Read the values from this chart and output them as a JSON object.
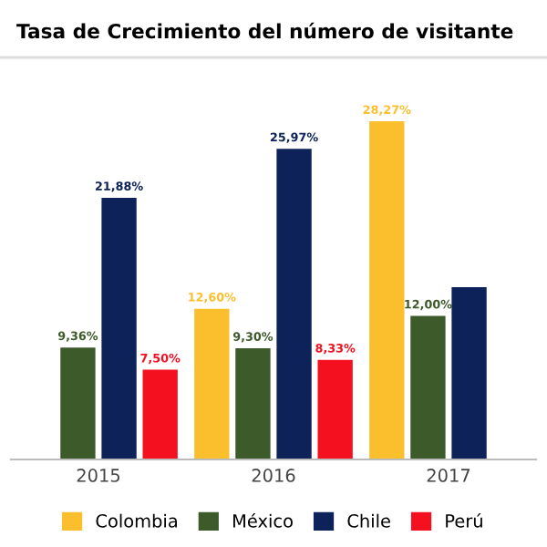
{
  "chart_data": {
    "type": "bar",
    "title": "Tasa de Crecimiento del número de visitante",
    "categories": [
      "2015",
      "2016",
      "2017"
    ],
    "series": [
      {
        "name": "Colombia",
        "color": "#fbbf2e",
        "values": [
          null,
          12.6,
          28.27
        ],
        "value_labels": [
          null,
          "12,60%",
          "28,27%"
        ]
      },
      {
        "name": "México",
        "color": "#3d5a2a",
        "values": [
          9.36,
          9.3,
          12.0
        ],
        "value_labels": [
          "9,36%",
          "9,30%",
          "12,00%"
        ]
      },
      {
        "name": "Chile",
        "color": "#0c2259",
        "values": [
          21.88,
          25.97,
          14.4
        ],
        "value_labels": [
          "21,88%",
          "25,97%",
          null
        ]
      },
      {
        "name": "Perú",
        "color": "#f5101f",
        "values": [
          7.5,
          8.33,
          null
        ],
        "value_labels": [
          "7,50%",
          "8,33%",
          null
        ]
      }
    ],
    "tick_labels": "x",
    "grid": false,
    "legend": "bottom"
  }
}
